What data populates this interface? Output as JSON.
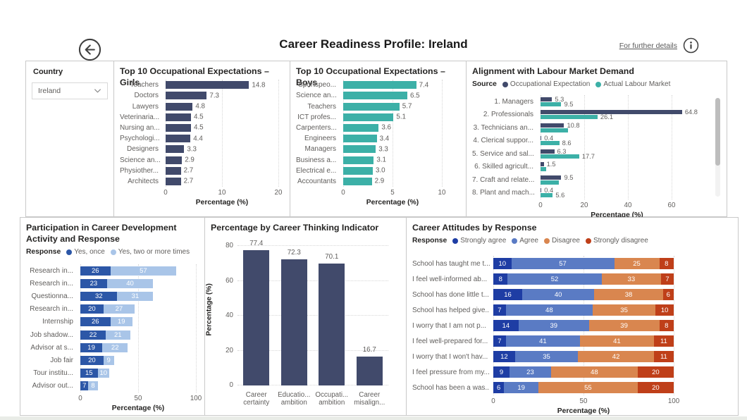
{
  "header": {
    "title": "Career Readiness Profile: Ireland",
    "details_link": "For further details"
  },
  "filter": {
    "label": "Country",
    "value": "Ireland"
  },
  "colors": {
    "navy": "#414a6b",
    "teal": "#3cb0a7",
    "blue_dark": "#2c57a7",
    "blue_light": "#a9c5e8",
    "strongly_agree": "#1e3da4",
    "agree": "#5a7bc4",
    "disagree": "#d9864f",
    "strongly_disagree": "#bf3f19"
  },
  "chart_data": [
    {
      "id": "girls",
      "type": "bar",
      "orientation": "horizontal",
      "title": "Top 10 Occupational Expectations – Girls",
      "categories": [
        "Teachers",
        "Doctors",
        "Lawyers",
        "Veterinaria...",
        "Nursing an...",
        "Psychologi...",
        "Designers",
        "Science an...",
        "Physiother...",
        "Architects"
      ],
      "values": [
        14.8,
        7.3,
        4.8,
        4.5,
        4.5,
        4.4,
        3.3,
        2.9,
        2.7,
        2.7
      ],
      "labels": [
        "14.8",
        "7.3",
        "4.8",
        "4.5",
        "4.5",
        "4.4",
        "3.3",
        "2.9",
        "2.7",
        "2.7"
      ],
      "color": "#414a6b",
      "xlabel": "Percentage (%)",
      "xlim": [
        0,
        20
      ],
      "xticks": [
        0,
        10,
        20
      ],
      "grid": true
    },
    {
      "id": "boys",
      "type": "bar",
      "orientation": "horizontal",
      "title": "Top 10 Occupational Expectations – Boys",
      "categories": [
        "Sportspeo...",
        "Science an...",
        "Teachers",
        "ICT profes...",
        "Carpenters...",
        "Engineers",
        "Managers",
        "Business a...",
        "Electrical e...",
        "Accountants"
      ],
      "values": [
        7.4,
        6.5,
        5.7,
        5.1,
        3.6,
        3.4,
        3.3,
        3.1,
        3.0,
        2.9
      ],
      "labels": [
        "7.4",
        "6.5",
        "5.7",
        "5.1",
        "3.6",
        "3.4",
        "3.3",
        "3.1",
        "3.0",
        "2.9"
      ],
      "color": "#3cb0a7",
      "xlabel": "Percentage (%)",
      "xlim": [
        0,
        10
      ],
      "xticks": [
        0,
        5,
        10
      ],
      "grid": true
    },
    {
      "id": "alignment",
      "type": "grouped-bar",
      "orientation": "horizontal",
      "title": "Alignment with Labour Market Demand",
      "legend_title": "Source",
      "legend_position": "top",
      "categories": [
        "1. Managers",
        "2. Professionals",
        "3. Technicians an...",
        "4. Clerical suppor...",
        "5. Service and sal...",
        "6. Skilled agricult...",
        "7. Craft and relate...",
        "8. Plant and mach..."
      ],
      "series": [
        {
          "name": "Occupational Expectation",
          "color": "#414a6b",
          "values": [
            5.3,
            64.8,
            10.8,
            0.4,
            6.3,
            1.5,
            9.5,
            0.4
          ],
          "labels": [
            "5.3",
            "64.8",
            "10.8",
            "0.4",
            "6.3",
            "1.5",
            "9.5",
            "0.4"
          ]
        },
        {
          "name": "Actual Labour Market",
          "color": "#3cb0a7",
          "values": [
            9.5,
            26.1,
            12.5,
            8.6,
            17.7,
            2.5,
            8.5,
            5.6
          ],
          "labels": [
            "9.5",
            "26.1",
            "",
            "8.6",
            "17.7",
            "",
            "",
            "5.6"
          ]
        }
      ],
      "xlabel": "Percentage (%)",
      "xlim": [
        0,
        70
      ],
      "xticks": [
        0,
        20,
        40,
        60
      ],
      "grid": true,
      "scrollbar": true
    },
    {
      "id": "participation",
      "type": "stacked-bar",
      "orientation": "horizontal",
      "title": "Participation in Career Development Activity and Response",
      "legend_title": "Response",
      "legend_position": "top",
      "categories": [
        "Research in...",
        "Research in...",
        "Questionna...",
        "Research in...",
        "Internship",
        "Job shadow...",
        "Advisor at s...",
        "Job fair",
        "Tour institu...",
        "Advisor out..."
      ],
      "series": [
        {
          "name": "Yes, once",
          "color": "#2c57a7",
          "values": [
            26,
            23,
            32,
            20,
            26,
            22,
            19,
            20,
            15,
            7
          ]
        },
        {
          "name": "Yes, two or more times",
          "color": "#a9c5e8",
          "values": [
            57,
            40,
            31,
            27,
            19,
            21,
            22,
            9,
            10,
            8
          ]
        }
      ],
      "xlabel": "Percentage (%)",
      "xlim": [
        0,
        100
      ],
      "xticks": [
        0,
        50,
        100
      ],
      "grid": true
    },
    {
      "id": "thinking",
      "type": "column",
      "orientation": "vertical",
      "title": "Percentage by Career Thinking Indicator",
      "categories": [
        [
          "Career",
          "certainty"
        ],
        [
          "Educatio...",
          "ambition"
        ],
        [
          "Occupati...",
          "ambition"
        ],
        [
          "Career",
          "misalign..."
        ]
      ],
      "values": [
        77.4,
        72.3,
        70.1,
        16.7
      ],
      "labels": [
        "77.4",
        "72.3",
        "70.1",
        "16.7"
      ],
      "color": "#414a6b",
      "ylabel": "Percentage (%)",
      "ylim": [
        0,
        80
      ],
      "yticks": [
        0,
        20,
        40,
        60,
        80
      ],
      "grid": true
    },
    {
      "id": "attitudes",
      "type": "stacked-bar",
      "orientation": "horizontal",
      "title": "Career Attitudes by Response",
      "legend_title": "Response",
      "legend_position": "top",
      "categories": [
        "School has taught me t...",
        "I feel well-informed ab...",
        "School has done little t...",
        "School has helped give...",
        "I worry that I am not p...",
        "I feel well-prepared for...",
        "I worry that I won't hav...",
        "I feel pressure from my...",
        "School has been a was..."
      ],
      "series": [
        {
          "name": "Strongly agree",
          "color": "#1e3da4",
          "values": [
            10,
            8,
            16,
            7,
            14,
            7,
            12,
            9,
            6
          ]
        },
        {
          "name": "Agree",
          "color": "#5a7bc4",
          "values": [
            57,
            52,
            40,
            48,
            39,
            41,
            35,
            23,
            19
          ]
        },
        {
          "name": "Disagree",
          "color": "#d9864f",
          "values": [
            25,
            33,
            38,
            35,
            39,
            41,
            42,
            48,
            55
          ]
        },
        {
          "name": "Strongly disagree",
          "color": "#bf3f19",
          "values": [
            8,
            7,
            6,
            10,
            8,
            11,
            11,
            20,
            20
          ]
        }
      ],
      "xlabel": "Percentage (%)",
      "xlim": [
        0,
        100
      ],
      "xticks": [
        0,
        50,
        100
      ],
      "grid": true
    }
  ]
}
